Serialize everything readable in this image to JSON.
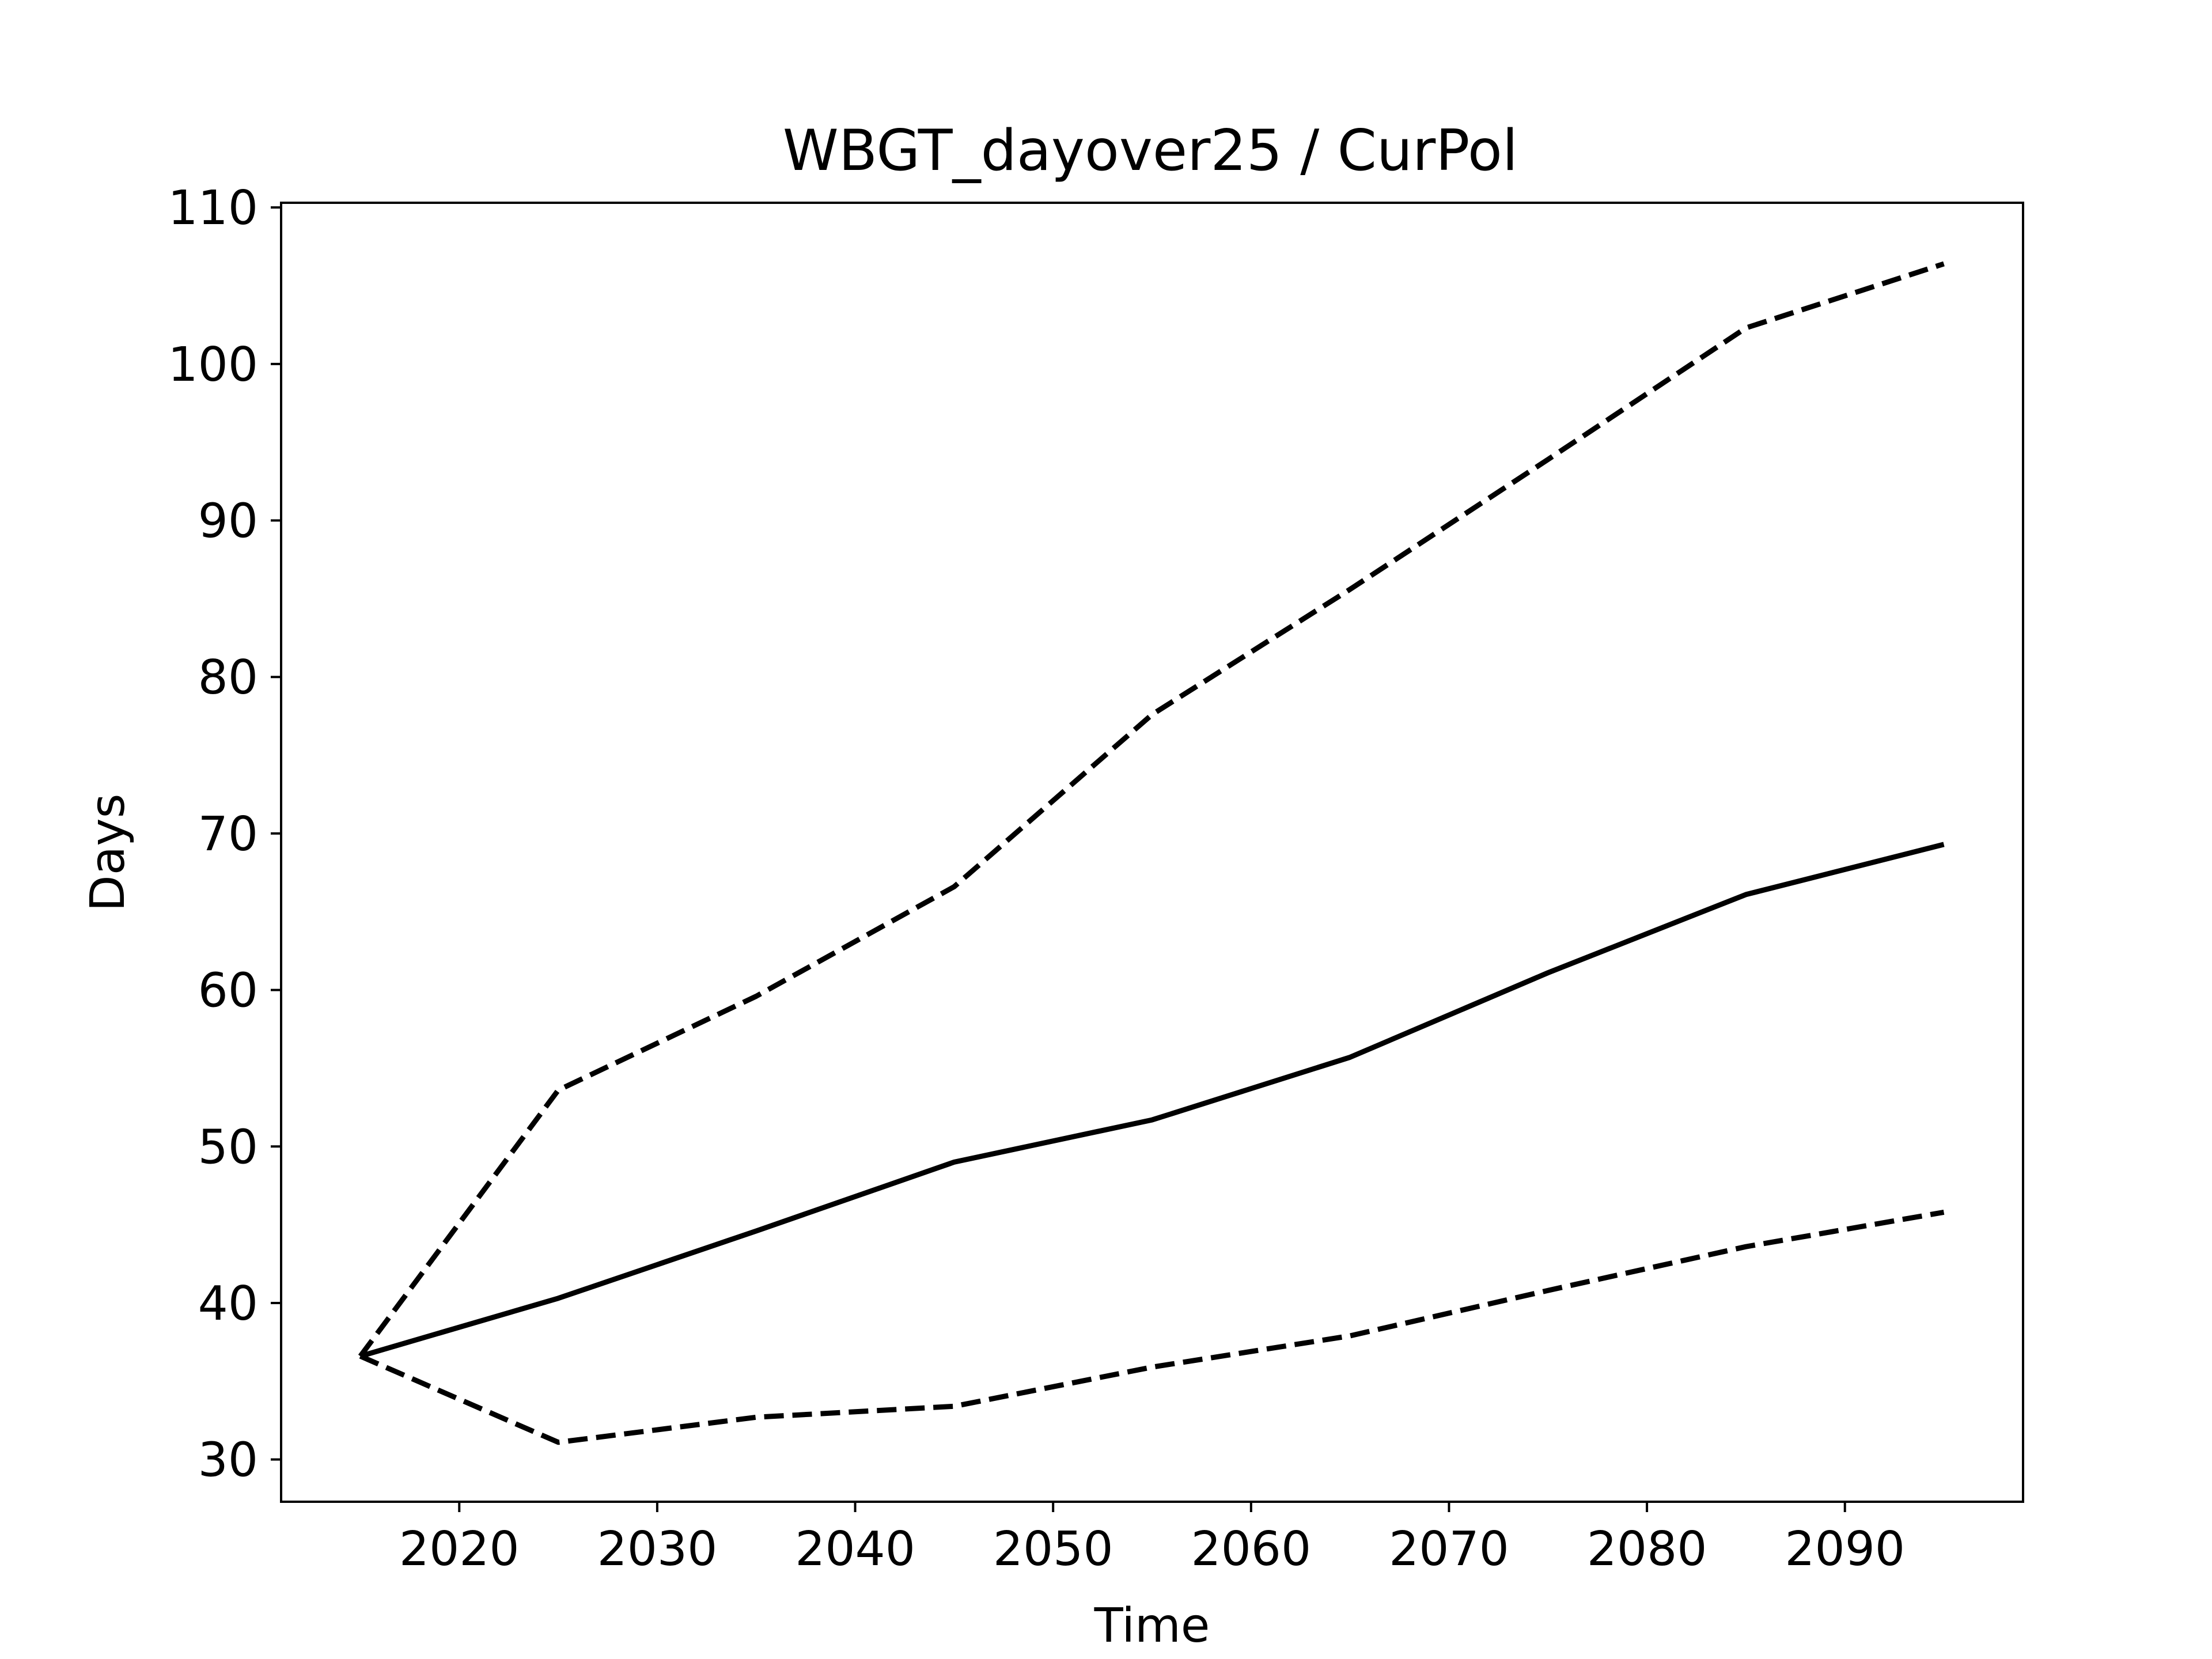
{
  "chart_data": {
    "type": "line",
    "title": "WBGT_dayover25 / CurPol",
    "xlabel": "Time",
    "ylabel": "Days",
    "xlim": [
      2011,
      2099
    ],
    "ylim": [
      27.3,
      110.3
    ],
    "x_ticks": [
      "2020",
      "2030",
      "2040",
      "2050",
      "2060",
      "2070",
      "2080",
      "2090"
    ],
    "y_ticks": [
      "30",
      "40",
      "50",
      "60",
      "70",
      "80",
      "90",
      "100",
      "110"
    ],
    "grid": false,
    "legend": "none",
    "x": [
      2015,
      2025,
      2035,
      2045,
      2055,
      2065,
      2075,
      2085,
      2095
    ],
    "series": [
      {
        "style": "solid",
        "color": "#000000",
        "values": [
          36.6,
          40.3,
          44.6,
          49.0,
          51.7,
          55.7,
          61.1,
          66.1,
          69.3
        ]
      },
      {
        "style": "dashed",
        "color": "#000000",
        "values": [
          36.6,
          53.6,
          59.6,
          66.6,
          77.6,
          85.6,
          93.9,
          102.3,
          106.4
        ]
      },
      {
        "style": "dashed",
        "color": "#000000",
        "values": [
          36.6,
          31.1,
          32.7,
          33.4,
          35.9,
          37.9,
          40.8,
          43.6,
          45.8
        ]
      }
    ]
  }
}
